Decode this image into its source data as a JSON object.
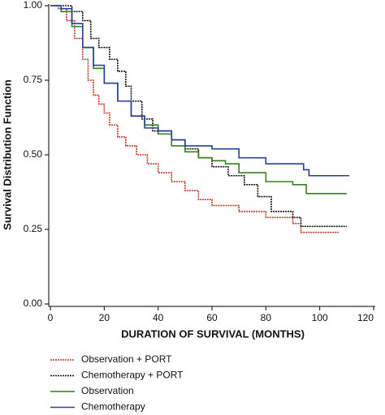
{
  "chart_data": {
    "type": "line",
    "step": "post",
    "xlabel": "DURATION OF SURVIVAL (MONTHS)",
    "ylabel": "Survival Distribution Function",
    "xlim": [
      0,
      120
    ],
    "xticks": [
      0,
      20,
      40,
      60,
      80,
      100,
      120
    ],
    "ylim": [
      0,
      1
    ],
    "yticks": [
      {
        "value": 0,
        "label": "0.00"
      },
      0.25,
      {
        "value": 0.5,
        "label": "0.50"
      },
      0.75,
      {
        "value": 1,
        "label": "1.00"
      }
    ],
    "series": [
      {
        "name": "Observation + PORT",
        "color": "#c0392b",
        "dash": "2,1",
        "x": [
          0,
          3,
          6,
          9,
          12,
          14,
          16,
          18,
          20,
          22,
          25,
          28,
          32,
          36,
          40,
          45,
          50,
          55,
          60,
          70,
          80,
          90,
          93,
          107
        ],
        "values": [
          1.0,
          0.99,
          0.95,
          0.89,
          0.82,
          0.75,
          0.7,
          0.67,
          0.64,
          0.6,
          0.56,
          0.53,
          0.5,
          0.47,
          0.44,
          0.41,
          0.38,
          0.35,
          0.33,
          0.31,
          0.29,
          0.27,
          0.24,
          0.24
        ]
      },
      {
        "name": "Chemotherapy + PORT",
        "color": "#111111",
        "dash": "2,1",
        "x": [
          0,
          5,
          8,
          12,
          15,
          18,
          22,
          25,
          28,
          30,
          34,
          38,
          45,
          50,
          55,
          60,
          66,
          72,
          77,
          82,
          90,
          93,
          110
        ],
        "values": [
          1.0,
          1.0,
          0.98,
          0.95,
          0.89,
          0.86,
          0.82,
          0.78,
          0.73,
          0.68,
          0.62,
          0.58,
          0.55,
          0.52,
          0.49,
          0.46,
          0.43,
          0.4,
          0.36,
          0.31,
          0.29,
          0.26,
          0.26
        ]
      },
      {
        "name": "Observation",
        "color": "#3a7d1e",
        "x": [
          0,
          4,
          8,
          12,
          16,
          20,
          25,
          30,
          35,
          40,
          45,
          50,
          55,
          60,
          65,
          70,
          80,
          90,
          95,
          110
        ],
        "values": [
          1.0,
          0.98,
          0.93,
          0.86,
          0.79,
          0.74,
          0.68,
          0.63,
          0.6,
          0.57,
          0.53,
          0.51,
          0.49,
          0.48,
          0.47,
          0.44,
          0.41,
          0.4,
          0.37,
          0.37
        ]
      },
      {
        "name": "Chemotherapy",
        "color": "#2a3f9a",
        "x": [
          0,
          4,
          8,
          12,
          16,
          20,
          25,
          30,
          35,
          40,
          45,
          50,
          60,
          70,
          80,
          88,
          94,
          96,
          111
        ],
        "values": [
          1.0,
          0.99,
          0.94,
          0.86,
          0.8,
          0.74,
          0.68,
          0.63,
          0.59,
          0.58,
          0.55,
          0.53,
          0.52,
          0.49,
          0.47,
          0.47,
          0.45,
          0.43,
          0.43
        ]
      }
    ]
  }
}
